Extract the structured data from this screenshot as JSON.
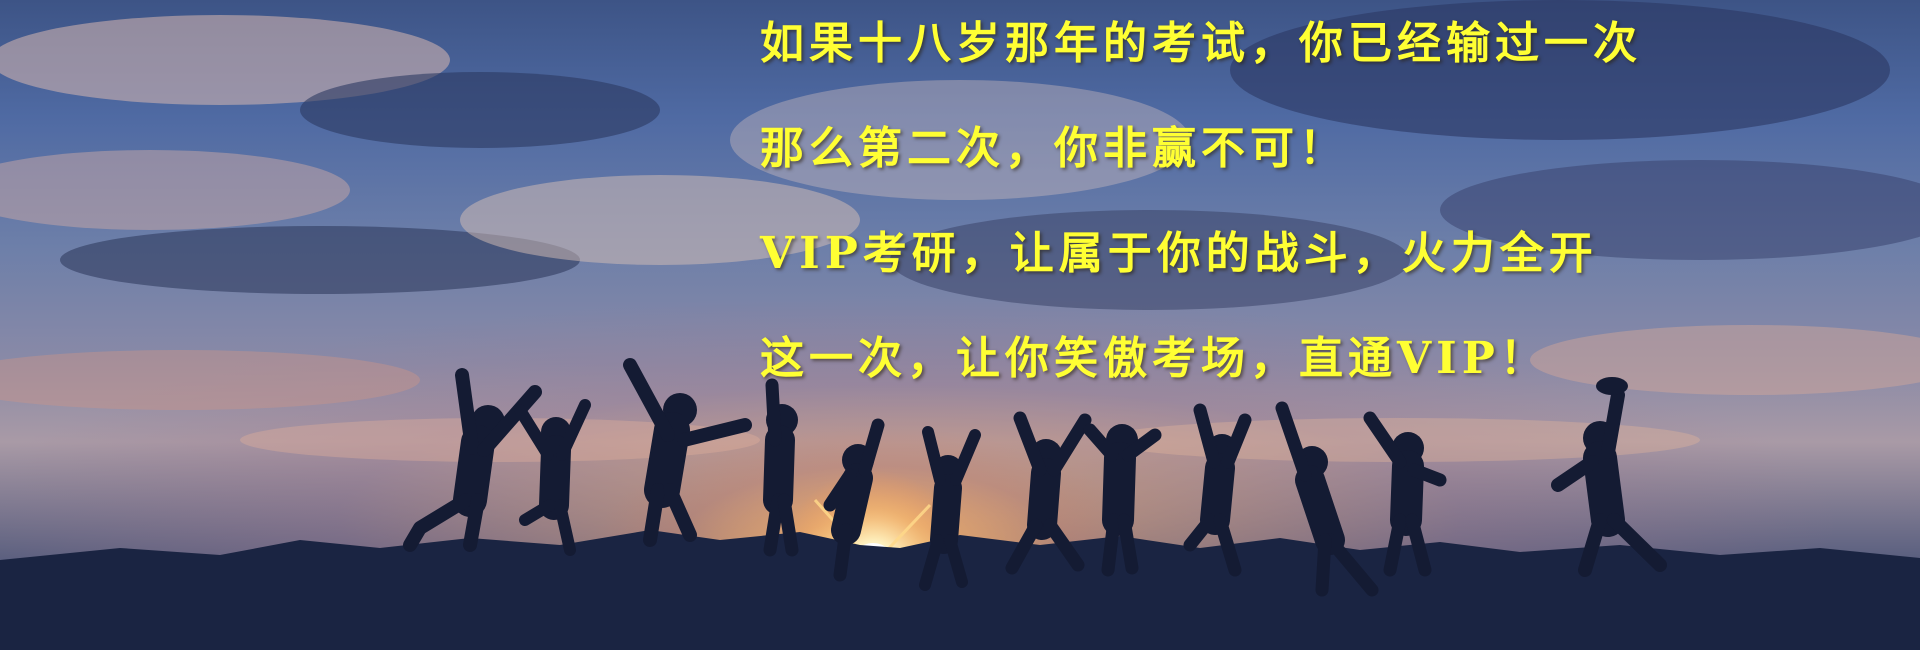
{
  "banner": {
    "headline_lines": [
      "如果十八岁那年的考试，你已经输过一次",
      "那么第二次，你非赢不可！",
      "VIP考研，让属于你的战斗，火力全开",
      "这一次，让你笑傲考场，直通VIP！"
    ],
    "text_color": "#ffff33",
    "photo": "silhouettes-of-people-jumping-at-sunset"
  }
}
